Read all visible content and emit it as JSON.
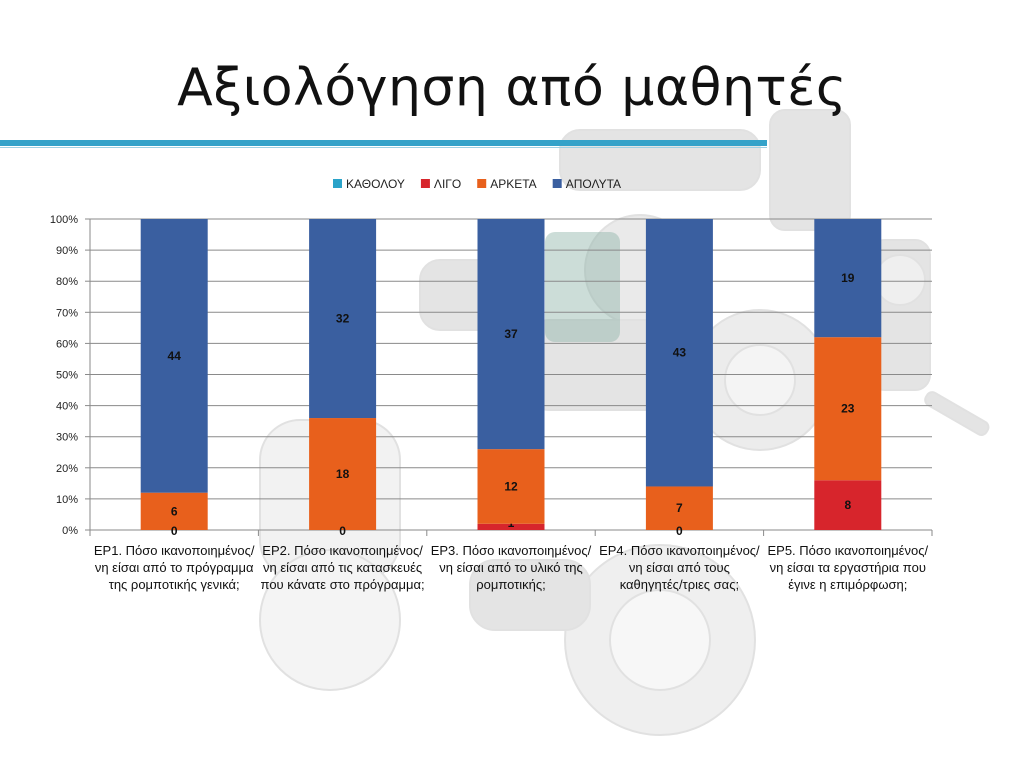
{
  "slide": {
    "title": "Αξιολόγηση από μαθητές"
  },
  "chart_data": {
    "type": "bar",
    "stacked": "percent",
    "categories": [
      "ΕΡ1. Πόσο ικανοποιημένος/νη είσαι από το πρόγραμμα της ρομποτικής γενικά;",
      "ΕΡ2. Πόσο ικανοποιημένος/νη είσαι από τις κατασκευές που κάνατε στο πρόγραμμα;",
      "ΕΡ3. Πόσο ικανοποιημένος/νη είσαι από το υλικό της ρομποτικής;",
      "ΕΡ4. Πόσο ικανοποιημένος/νη είσαι από τους καθηγητές/τριες σας;",
      "ΕΡ5. Πόσο ικανοποιημένος/νη είσαι τα εργαστήρια που έγινε η επιμόρφωση;"
    ],
    "series": [
      {
        "name": "ΚΑΘΟΛΟΥ",
        "color": "#2aa3c9",
        "values": [
          0,
          0,
          0,
          0,
          0
        ],
        "labels": [
          "0",
          "0",
          "",
          "0",
          ""
        ]
      },
      {
        "name": "ΛΙΓΟ",
        "color": "#d7252c",
        "values": [
          0,
          0,
          1,
          0,
          8
        ],
        "labels": [
          "",
          "",
          "1",
          "",
          "8"
        ]
      },
      {
        "name": "ΑΡΚΕΤΑ",
        "color": "#e8601c",
        "values": [
          6,
          18,
          12,
          7,
          23
        ],
        "labels": [
          "6",
          "18",
          "12",
          "7",
          "23"
        ]
      },
      {
        "name": "ΑΠΟΛΥΤΑ",
        "color": "#3a5fa0",
        "values": [
          44,
          32,
          37,
          43,
          19
        ],
        "labels": [
          "44",
          "32",
          "37",
          "43",
          "19"
        ]
      }
    ],
    "y_ticks": [
      "0%",
      "10%",
      "20%",
      "30%",
      "40%",
      "50%",
      "60%",
      "70%",
      "80%",
      "90%",
      "100%"
    ],
    "ylim": [
      0,
      100
    ],
    "grid": true,
    "legend_position": "top"
  }
}
